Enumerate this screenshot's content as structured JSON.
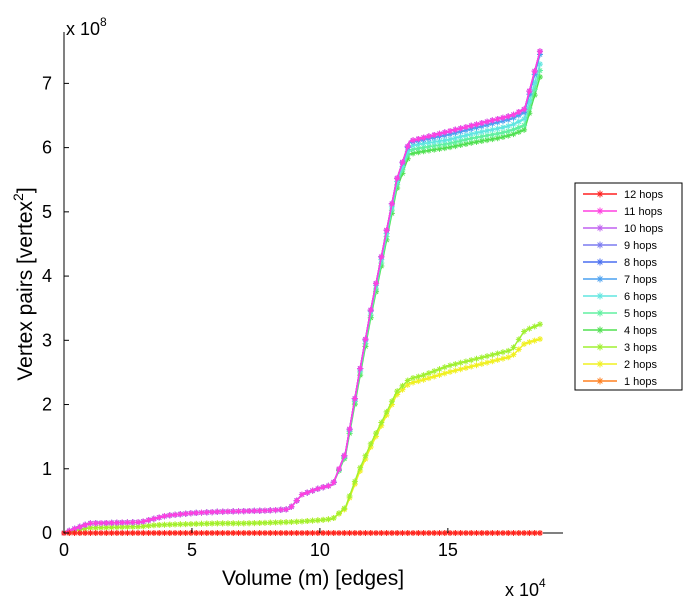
{
  "chart_data": {
    "type": "line",
    "xlabel": "Volume (m) [edges]",
    "ylabel_main": "Vertex pairs [vertex",
    "ylabel_sup": "2",
    "ylabel_end": "]",
    "x_multiplier": {
      "base": "x 10",
      "exp": "4"
    },
    "y_multiplier": {
      "base": "x 10",
      "exp": "8"
    },
    "xlim": [
      0,
      19.5
    ],
    "ylim": [
      0,
      7.8
    ],
    "xticks": [
      0,
      5,
      10,
      15
    ],
    "yticks": [
      0,
      1,
      2,
      3,
      4,
      5,
      6,
      7
    ],
    "legend_position": "right",
    "x": [
      0,
      0.5,
      1,
      2,
      3,
      3.5,
      4,
      5,
      6,
      7,
      8,
      8.8,
      9.3,
      10,
      10.5,
      11,
      11.5,
      12,
      12.5,
      13,
      13.5,
      14,
      15,
      16,
      17,
      17.5,
      18,
      18.6
    ],
    "series": [
      {
        "name": "12 hops",
        "color": "#ff2020",
        "values": [
          0,
          0,
          0,
          0,
          0,
          0,
          0,
          0,
          0,
          0,
          0,
          0,
          0,
          0,
          0,
          0,
          0,
          0,
          0,
          0,
          0,
          0,
          0,
          0,
          0,
          0,
          0,
          0
        ]
      },
      {
        "name": "11 hops",
        "color": "#ff40e0",
        "values": [
          0,
          0.08,
          0.15,
          0.16,
          0.17,
          0.22,
          0.27,
          0.31,
          0.33,
          0.34,
          0.35,
          0.37,
          0.6,
          0.7,
          0.75,
          1.25,
          2.4,
          3.5,
          4.5,
          5.5,
          6.1,
          6.15,
          6.25,
          6.35,
          6.45,
          6.5,
          6.6,
          7.5
        ]
      },
      {
        "name": "10 hops",
        "color": "#c060f0",
        "values": [
          0,
          0.08,
          0.15,
          0.16,
          0.17,
          0.22,
          0.27,
          0.31,
          0.33,
          0.34,
          0.35,
          0.37,
          0.6,
          0.7,
          0.75,
          1.25,
          2.4,
          3.5,
          4.5,
          5.5,
          6.1,
          6.15,
          6.25,
          6.35,
          6.45,
          6.5,
          6.6,
          7.5
        ]
      },
      {
        "name": "9 hops",
        "color": "#7b7bf0",
        "values": [
          0,
          0.08,
          0.15,
          0.16,
          0.17,
          0.22,
          0.27,
          0.31,
          0.33,
          0.34,
          0.35,
          0.37,
          0.6,
          0.7,
          0.75,
          1.25,
          2.4,
          3.5,
          4.5,
          5.5,
          6.1,
          6.15,
          6.25,
          6.35,
          6.45,
          6.5,
          6.6,
          7.5
        ]
      },
      {
        "name": "8 hops",
        "color": "#4a6ff0",
        "values": [
          0,
          0.08,
          0.15,
          0.16,
          0.17,
          0.22,
          0.27,
          0.31,
          0.33,
          0.34,
          0.35,
          0.37,
          0.6,
          0.7,
          0.75,
          1.25,
          2.4,
          3.5,
          4.5,
          5.5,
          6.1,
          6.15,
          6.25,
          6.35,
          6.45,
          6.5,
          6.6,
          7.5
        ]
      },
      {
        "name": "7 hops",
        "color": "#4aa0f0",
        "values": [
          0,
          0.08,
          0.15,
          0.16,
          0.17,
          0.22,
          0.27,
          0.31,
          0.33,
          0.34,
          0.35,
          0.37,
          0.6,
          0.7,
          0.75,
          1.25,
          2.4,
          3.5,
          4.5,
          5.5,
          6.08,
          6.12,
          6.2,
          6.3,
          6.4,
          6.45,
          6.55,
          7.45
        ]
      },
      {
        "name": "6 hops",
        "color": "#60e6e0",
        "values": [
          0,
          0.08,
          0.15,
          0.16,
          0.17,
          0.22,
          0.27,
          0.31,
          0.33,
          0.34,
          0.35,
          0.37,
          0.6,
          0.7,
          0.75,
          1.24,
          2.38,
          3.48,
          4.45,
          5.45,
          6.02,
          6.06,
          6.12,
          6.22,
          6.3,
          6.35,
          6.45,
          7.3
        ]
      },
      {
        "name": "5 hops",
        "color": "#60f0a0",
        "values": [
          0,
          0.08,
          0.15,
          0.16,
          0.17,
          0.22,
          0.27,
          0.31,
          0.33,
          0.34,
          0.35,
          0.37,
          0.6,
          0.7,
          0.75,
          1.22,
          2.35,
          3.42,
          4.4,
          5.4,
          5.96,
          6.0,
          6.06,
          6.15,
          6.22,
          6.27,
          6.35,
          7.2
        ]
      },
      {
        "name": "4 hops",
        "color": "#50e050",
        "values": [
          0,
          0.08,
          0.15,
          0.16,
          0.17,
          0.22,
          0.27,
          0.31,
          0.33,
          0.34,
          0.35,
          0.37,
          0.6,
          0.7,
          0.75,
          1.2,
          2.3,
          3.38,
          4.35,
          5.35,
          5.9,
          5.94,
          6.0,
          6.08,
          6.15,
          6.2,
          6.28,
          7.1
        ]
      },
      {
        "name": "3 hops",
        "color": "#a0f030",
        "values": [
          0,
          0.05,
          0.08,
          0.09,
          0.1,
          0.12,
          0.13,
          0.14,
          0.15,
          0.15,
          0.16,
          0.17,
          0.18,
          0.2,
          0.22,
          0.4,
          0.95,
          1.4,
          1.8,
          2.2,
          2.4,
          2.45,
          2.6,
          2.7,
          2.8,
          2.85,
          3.15,
          3.25
        ]
      },
      {
        "name": "2 hops",
        "color": "#f0f020",
        "values": [
          0,
          0.05,
          0.08,
          0.09,
          0.1,
          0.12,
          0.13,
          0.14,
          0.15,
          0.15,
          0.16,
          0.17,
          0.18,
          0.2,
          0.22,
          0.38,
          0.9,
          1.35,
          1.75,
          2.15,
          2.33,
          2.38,
          2.5,
          2.6,
          2.7,
          2.75,
          2.95,
          3.02
        ]
      },
      {
        "name": "1 hops",
        "color": "#ff8020",
        "values": [
          0,
          0,
          0,
          0,
          0,
          0,
          0,
          0,
          0,
          0,
          0,
          0,
          0,
          0,
          0,
          0,
          0,
          0,
          0,
          0,
          0,
          0,
          0,
          0,
          0,
          0,
          0,
          0
        ]
      }
    ]
  }
}
